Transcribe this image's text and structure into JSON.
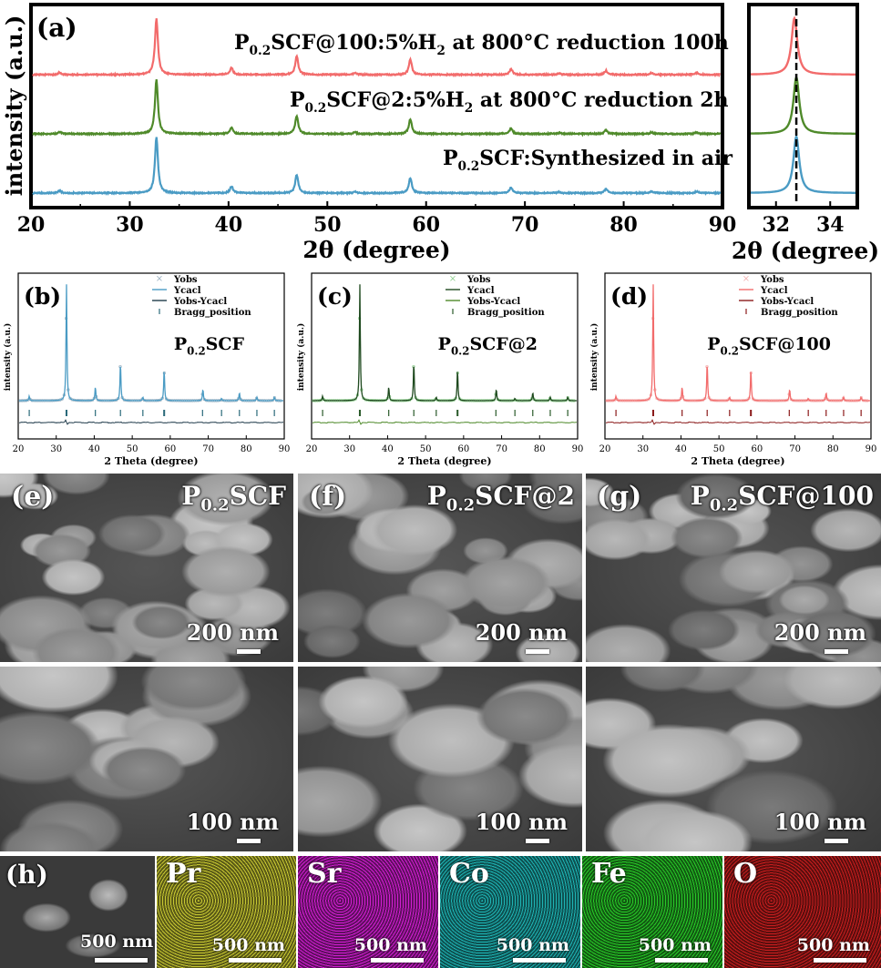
{
  "panel_a": {
    "label": "(a)",
    "ylabel": "intensity (a.u.)",
    "xlabel": "2θ (degree)",
    "inset_xlabel": "2θ (degree)",
    "curve_labels": [
      {
        "main": "P",
        "sub": "0.2",
        "rest": "SCF@100:5%H",
        "sub2": "2",
        "tail": " at 800°C reduction 100h"
      },
      {
        "main": "P",
        "sub": "0.2",
        "rest": "SCF@2:5%H",
        "sub2": "2",
        "tail": " at 800°C reduction 2h"
      },
      {
        "main": "P",
        "sub": "0.2",
        "rest": "SCF:Synthesized in air",
        "sub2": "",
        "tail": ""
      }
    ]
  },
  "refinement_panels": [
    {
      "label": "(b)",
      "sample_main": "P",
      "sample_sub": "0.2",
      "sample_rest": "SCF",
      "legend": [
        "Yobs",
        "Ycacl",
        "Yobs-Ycacl",
        "Bragg_position"
      ],
      "ylabel": "intensity (a.u.)",
      "xlabel": "2 Theta (degree)"
    },
    {
      "label": "(c)",
      "sample_main": "P",
      "sample_sub": "0.2",
      "sample_rest": "SCF@2",
      "legend": [
        "Yobs",
        "Ycacl",
        "Yobs-Ycacl",
        "Bragg_position"
      ],
      "ylabel": "intensity (a.u.)",
      "xlabel": "2 Theta (degree)"
    },
    {
      "label": "(d)",
      "sample_main": "P",
      "sample_sub": "0.2",
      "sample_rest": "SCF@100",
      "legend": [
        "Yobs",
        "Ycacl",
        "Yobs-Ycacl",
        "Bragg_position"
      ],
      "ylabel": "intensity (a.u.)",
      "xlabel": "2 Theta (degree)"
    }
  ],
  "sem": {
    "panels": [
      {
        "label": "(e)",
        "sample_main": "P",
        "sample_sub": "0.2",
        "sample_rest": "SCF",
        "scale_top": "200 nm",
        "scale_bottom": "100 nm"
      },
      {
        "label": "(f)",
        "sample_main": "P",
        "sample_sub": "0.2",
        "sample_rest": "SCF@2",
        "scale_top": "200 nm",
        "scale_bottom": "100 nm"
      },
      {
        "label": "(g)",
        "sample_main": "P",
        "sample_sub": "0.2",
        "sample_rest": "SCF@100",
        "scale_top": "200 nm",
        "scale_bottom": "100 nm"
      }
    ]
  },
  "eds": {
    "label": "(h)",
    "sem_scale": "500 nm",
    "maps": [
      {
        "element": "Pr",
        "scale": "500 nm",
        "color": "#c8c832"
      },
      {
        "element": "Sr",
        "scale": "500 nm",
        "color": "#d21ed2"
      },
      {
        "element": "Co",
        "scale": "500 nm",
        "color": "#1eb4b4"
      },
      {
        "element": "Fe",
        "scale": "500 nm",
        "color": "#28c828"
      },
      {
        "element": "O",
        "scale": "500 nm",
        "color": "#c81e1e"
      }
    ]
  },
  "colors": {
    "red": "#f26b6b",
    "green": "#4f8a2a",
    "blue": "#4a9bc4",
    "dark_green": "#1f4a1f",
    "dark_red": "#8b1a1a"
  },
  "chart_data": [
    {
      "type": "line",
      "panel": "a",
      "xlabel": "2θ (degree)",
      "ylabel": "intensity (a.u.)",
      "xlim": [
        20,
        90
      ],
      "xticks": [
        20,
        30,
        40,
        50,
        60,
        70,
        80,
        90
      ],
      "peaks_2theta": [
        22.9,
        32.7,
        40.3,
        46.9,
        52.8,
        58.4,
        68.6,
        73.5,
        78.2,
        82.8,
        87.4
      ],
      "peak_rel_intensity": [
        0.04,
        1.0,
        0.12,
        0.33,
        0.03,
        0.27,
        0.1,
        0.02,
        0.07,
        0.03,
        0.03
      ],
      "series": [
        {
          "name": "P0.2SCF@100:5%H2 at 800°C reduction 100h",
          "color": "#f26b6b"
        },
        {
          "name": "P0.2SCF@2:5%H2 at 800°C reduction 2h",
          "color": "#4f8a2a"
        },
        {
          "name": "P0.2SCF:Synthesized in air",
          "color": "#4a9bc4"
        }
      ]
    },
    {
      "type": "line",
      "panel": "a-inset",
      "xlabel": "2θ (degree)",
      "xlim": [
        31,
        35
      ],
      "xticks": [
        32,
        34
      ],
      "reference_line_x": 32.75,
      "peak_centers": [
        32.68,
        32.75,
        32.75
      ]
    },
    {
      "type": "scatter",
      "panel": "b-d",
      "xlabel": "2 Theta (degree)",
      "ylabel": "intensity (a.u.)",
      "xlim": [
        20,
        90
      ],
      "xticks": [
        20,
        30,
        40,
        50,
        60,
        70,
        80,
        90
      ],
      "bragg_positions": [
        22.9,
        32.6,
        32.8,
        40.3,
        46.9,
        52.8,
        58.3,
        58.5,
        68.5,
        73.5,
        78.2,
        82.8,
        87.4
      ],
      "series": [
        {
          "name": "Yobs"
        },
        {
          "name": "Ycacl"
        },
        {
          "name": "Yobs-Ycacl"
        },
        {
          "name": "Bragg_position"
        }
      ]
    }
  ]
}
